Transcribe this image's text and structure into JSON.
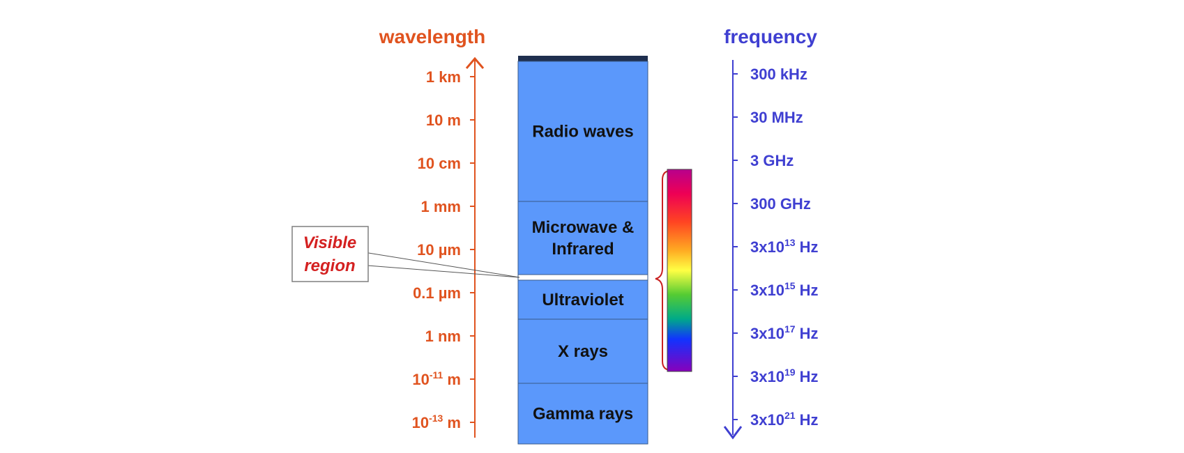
{
  "wavelength_axis": {
    "title": "wavelength",
    "color": "#e0531f",
    "ticks": [
      {
        "base": "1 km",
        "sup": "",
        "unit": ""
      },
      {
        "base": "10 m",
        "sup": "",
        "unit": ""
      },
      {
        "base": "10 cm",
        "sup": "",
        "unit": ""
      },
      {
        "base": "1 mm",
        "sup": "",
        "unit": ""
      },
      {
        "base": "10 µm",
        "sup": "",
        "unit": ""
      },
      {
        "base": "0.1 µm",
        "sup": "",
        "unit": ""
      },
      {
        "base": "1 nm",
        "sup": "",
        "unit": ""
      },
      {
        "base": "10",
        "sup": "-11",
        "unit": " m"
      },
      {
        "base": "10",
        "sup": "-13",
        "unit": " m"
      }
    ]
  },
  "frequency_axis": {
    "title": "frequency",
    "color": "#3f3fd1",
    "ticks": [
      {
        "base": "300 kHz",
        "sup": "",
        "unit": ""
      },
      {
        "base": "30 MHz",
        "sup": "",
        "unit": ""
      },
      {
        "base": "3 GHz",
        "sup": "",
        "unit": ""
      },
      {
        "base": "300 GHz",
        "sup": "",
        "unit": ""
      },
      {
        "base": "3x10",
        "sup": "13",
        "unit": " Hz"
      },
      {
        "base": "3x10",
        "sup": "15",
        "unit": " Hz"
      },
      {
        "base": "3x10",
        "sup": "17",
        "unit": " Hz"
      },
      {
        "base": "3x10",
        "sup": "19",
        "unit": " Hz"
      },
      {
        "base": "3x10",
        "sup": "21",
        "unit": " Hz"
      }
    ]
  },
  "bands": [
    {
      "lines": [
        "Radio waves"
      ]
    },
    {
      "lines": [
        "Microwave &",
        "Infrared"
      ]
    },
    {
      "lines": [
        "Ultraviolet"
      ]
    },
    {
      "lines": [
        "X rays"
      ]
    },
    {
      "lines": [
        "Gamma rays"
      ]
    }
  ],
  "callout": {
    "lines": [
      "Visible",
      "region"
    ],
    "color": "#d42020"
  },
  "colors": {
    "band_fill": "#5b98fb",
    "band_stroke": "#3a5a8a",
    "bracket": "#c92020",
    "spectrum": [
      "#cc0099",
      "#ff0033",
      "#ff7700",
      "#ffff33",
      "#00cc33",
      "#0044ff",
      "#7700cc"
    ]
  }
}
